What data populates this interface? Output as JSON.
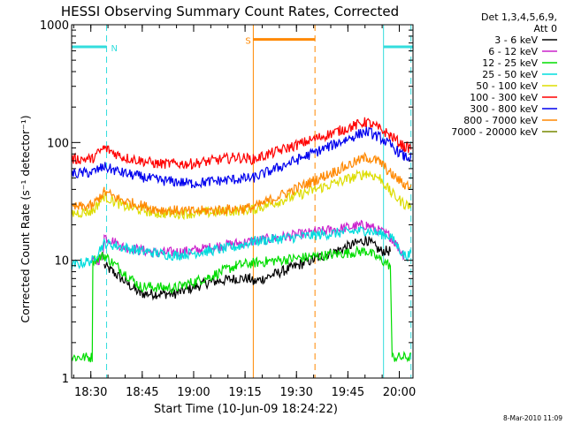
{
  "chart_data": {
    "type": "line",
    "title": "HESSI Observing Summary Count Rates, Corrected",
    "xlabel": "Start Time (10-Jun-09 18:24:22)",
    "ylabel": "Corrected Count Rate (s⁻¹ detector⁻¹)",
    "x_unit": "minutes since 18:24:22",
    "xlim": [
      0,
      99.6
    ],
    "ylim": [
      1,
      1000
    ],
    "y_scale": "log",
    "x_ticks": [
      {
        "label": "18:30",
        "value": 5.6
      },
      {
        "label": "18:45",
        "value": 20.6
      },
      {
        "label": "19:00",
        "value": 35.6
      },
      {
        "label": "19:15",
        "value": 50.6
      },
      {
        "label": "19:30",
        "value": 65.6
      },
      {
        "label": "19:45",
        "value": 80.6
      },
      {
        "label": "20:00",
        "value": 95.6
      }
    ],
    "y_ticks": [
      {
        "label": "1",
        "value": 1
      },
      {
        "label": "10",
        "value": 10
      },
      {
        "label": "100",
        "value": 100
      },
      {
        "label": "1000",
        "value": 1000
      }
    ],
    "legend": {
      "header1": "Det 1,3,4,5,6,9,",
      "header2": "Att 0",
      "position": "right"
    },
    "series": [
      {
        "name": "3 - 6 keV",
        "color": "#000000",
        "values": [
          [
            9.5,
            9
          ],
          [
            12,
            8
          ],
          [
            20,
            5.2
          ],
          [
            30,
            5.2
          ],
          [
            40,
            6.5
          ],
          [
            48,
            7
          ],
          [
            52,
            7
          ],
          [
            53,
            6.5
          ],
          [
            86,
            15
          ],
          [
            90,
            12
          ],
          [
            93,
            12
          ]
        ]
      },
      {
        "name": "6 - 12 keV",
        "color": "#cc22cc",
        "values": [
          [
            6,
            9.5
          ],
          [
            9,
            10.5
          ],
          [
            9.5,
            16
          ],
          [
            15,
            13
          ],
          [
            25,
            11.5
          ],
          [
            35,
            12
          ],
          [
            45,
            13.5
          ],
          [
            53,
            14.5
          ],
          [
            86,
            20
          ],
          [
            93,
            16
          ],
          [
            97,
            11
          ]
        ]
      },
      {
        "name": "12 - 25 keV",
        "color": "#00dd00",
        "values": [
          [
            0,
            1.5
          ],
          [
            6,
            1.5
          ],
          [
            6.2,
            10
          ],
          [
            9.5,
            11
          ],
          [
            20,
            6
          ],
          [
            30,
            5.8
          ],
          [
            40,
            7.2
          ],
          [
            48,
            9
          ],
          [
            53,
            9.5
          ],
          [
            86,
            12
          ],
          [
            93,
            9
          ],
          [
            93.5,
            1.5
          ],
          [
            99,
            1.5
          ]
        ]
      },
      {
        "name": "25 - 50 keV",
        "color": "#00dddd",
        "values": [
          [
            0,
            9
          ],
          [
            6,
            10
          ],
          [
            9.5,
            14
          ],
          [
            20,
            12
          ],
          [
            30,
            11
          ],
          [
            40,
            12
          ],
          [
            48,
            13
          ],
          [
            53,
            14.5
          ],
          [
            86,
            18
          ],
          [
            93,
            16
          ],
          [
            97,
            11
          ],
          [
            99,
            11
          ]
        ]
      },
      {
        "name": "50 - 100 keV",
        "color": "#dddd00",
        "values": [
          [
            0,
            25
          ],
          [
            6,
            26
          ],
          [
            9.5,
            35
          ],
          [
            15,
            29
          ],
          [
            25,
            25
          ],
          [
            35,
            25
          ],
          [
            45,
            26
          ],
          [
            53,
            27
          ],
          [
            86,
            55
          ],
          [
            90,
            50
          ],
          [
            93,
            38
          ],
          [
            97,
            30
          ],
          [
            99,
            29
          ]
        ]
      },
      {
        "name": "100 - 300 keV",
        "color": "#ff0000",
        "values": [
          [
            0,
            72
          ],
          [
            6,
            73
          ],
          [
            9.5,
            90
          ],
          [
            15,
            75
          ],
          [
            25,
            66
          ],
          [
            35,
            66
          ],
          [
            48,
            75
          ],
          [
            53,
            72
          ],
          [
            86,
            150
          ],
          [
            90,
            130
          ],
          [
            93,
            115
          ],
          [
            97,
            92
          ],
          [
            99,
            90
          ]
        ]
      },
      {
        "name": "300 - 800 keV",
        "color": "#0000ee",
        "values": [
          [
            0,
            54
          ],
          [
            6,
            56
          ],
          [
            9.5,
            62
          ],
          [
            15,
            55
          ],
          [
            25,
            48
          ],
          [
            35,
            45
          ],
          [
            45,
            48
          ],
          [
            53,
            50
          ],
          [
            86,
            125
          ],
          [
            90,
            110
          ],
          [
            93,
            95
          ],
          [
            97,
            76
          ],
          [
            99,
            74
          ]
        ]
      },
      {
        "name": "800 - 7000 keV",
        "color": "#ff8800",
        "values": [
          [
            0,
            28
          ],
          [
            6,
            29
          ],
          [
            9.5,
            38
          ],
          [
            15,
            32
          ],
          [
            25,
            27
          ],
          [
            35,
            26
          ],
          [
            45,
            27
          ],
          [
            53,
            28
          ],
          [
            86,
            75
          ],
          [
            90,
            68
          ],
          [
            93,
            55
          ],
          [
            97,
            44
          ],
          [
            99,
            43
          ]
        ]
      },
      {
        "name": "7000 - 20000 keV",
        "color": "#778800",
        "values": []
      }
    ],
    "annotations": [
      {
        "label": "N",
        "color": "#33dddd",
        "x_start": 0,
        "x_end": 10.2,
        "y": 650,
        "dashed_x": 10.2,
        "extra_line_x": 0
      },
      {
        "label": "S",
        "color": "#ff8800",
        "x_start": 53,
        "x_end": 71,
        "y": 750,
        "dashed_x": 71,
        "extra_line_x": 53
      },
      {
        "label": "",
        "color": "#33dddd",
        "x_start": 91,
        "x_end": 99.6,
        "y": 650,
        "dashed_x": 99,
        "extra_line_x": 91
      }
    ]
  },
  "footer": {
    "timestamp": "8-Mar-2010 11:09"
  }
}
